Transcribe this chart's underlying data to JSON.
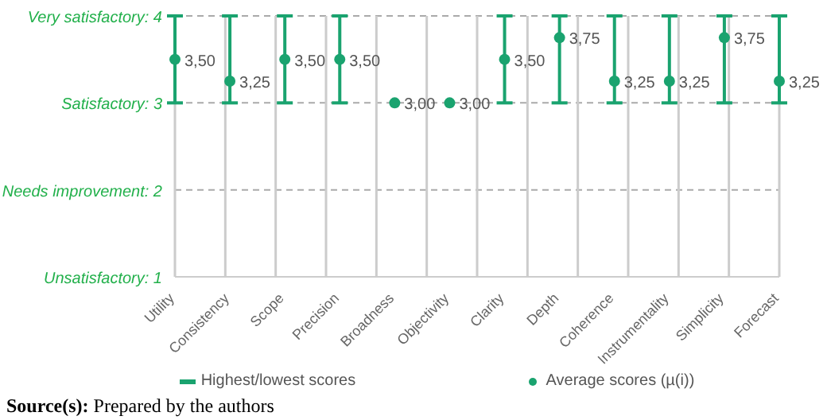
{
  "chart_data": {
    "type": "scatter",
    "categories": [
      "Utility",
      "Consistency",
      "Scope",
      "Precision",
      "Broadness",
      "Objectivity",
      "Clarity",
      "Depth",
      "Coherence",
      "Instrumentality",
      "Simplicity",
      "Forecast"
    ],
    "series": [
      {
        "name": "Average scores (µ(i))",
        "color": "#1aa36f",
        "values": [
          3.5,
          3.25,
          3.5,
          3.5,
          3.0,
          3.0,
          3.5,
          3.75,
          3.25,
          3.25,
          3.75,
          3.25
        ],
        "errors": [
          [
            3,
            4
          ],
          [
            3,
            4
          ],
          [
            3,
            4
          ],
          [
            3,
            4
          ],
          null,
          null,
          [
            3,
            4
          ],
          [
            3,
            4
          ],
          [
            3,
            4
          ],
          [
            3,
            4
          ],
          [
            3,
            4
          ],
          [
            3,
            4
          ]
        ],
        "value_labels": [
          "3,50",
          "3,25",
          "3,50",
          "3,50",
          "3,00",
          "3,00",
          "3,50",
          "3,75",
          "3,25",
          "3,25",
          "3,75",
          "3,25"
        ]
      }
    ],
    "ylim": [
      1,
      4
    ],
    "yticks": [
      {
        "value": 1,
        "label": "Unsatisfactory: 1"
      },
      {
        "value": 2,
        "label": "Needs improvement: 2"
      },
      {
        "value": 3,
        "label": "Satisfactory: 3"
      },
      {
        "value": 4,
        "label": "Very satisfactory: 4"
      }
    ],
    "grid": true,
    "legend": "bottom",
    "marker": "circle",
    "annotations": [
      "Highest/lowest scores",
      "Source(s): Prepared by the authors"
    ]
  }
}
